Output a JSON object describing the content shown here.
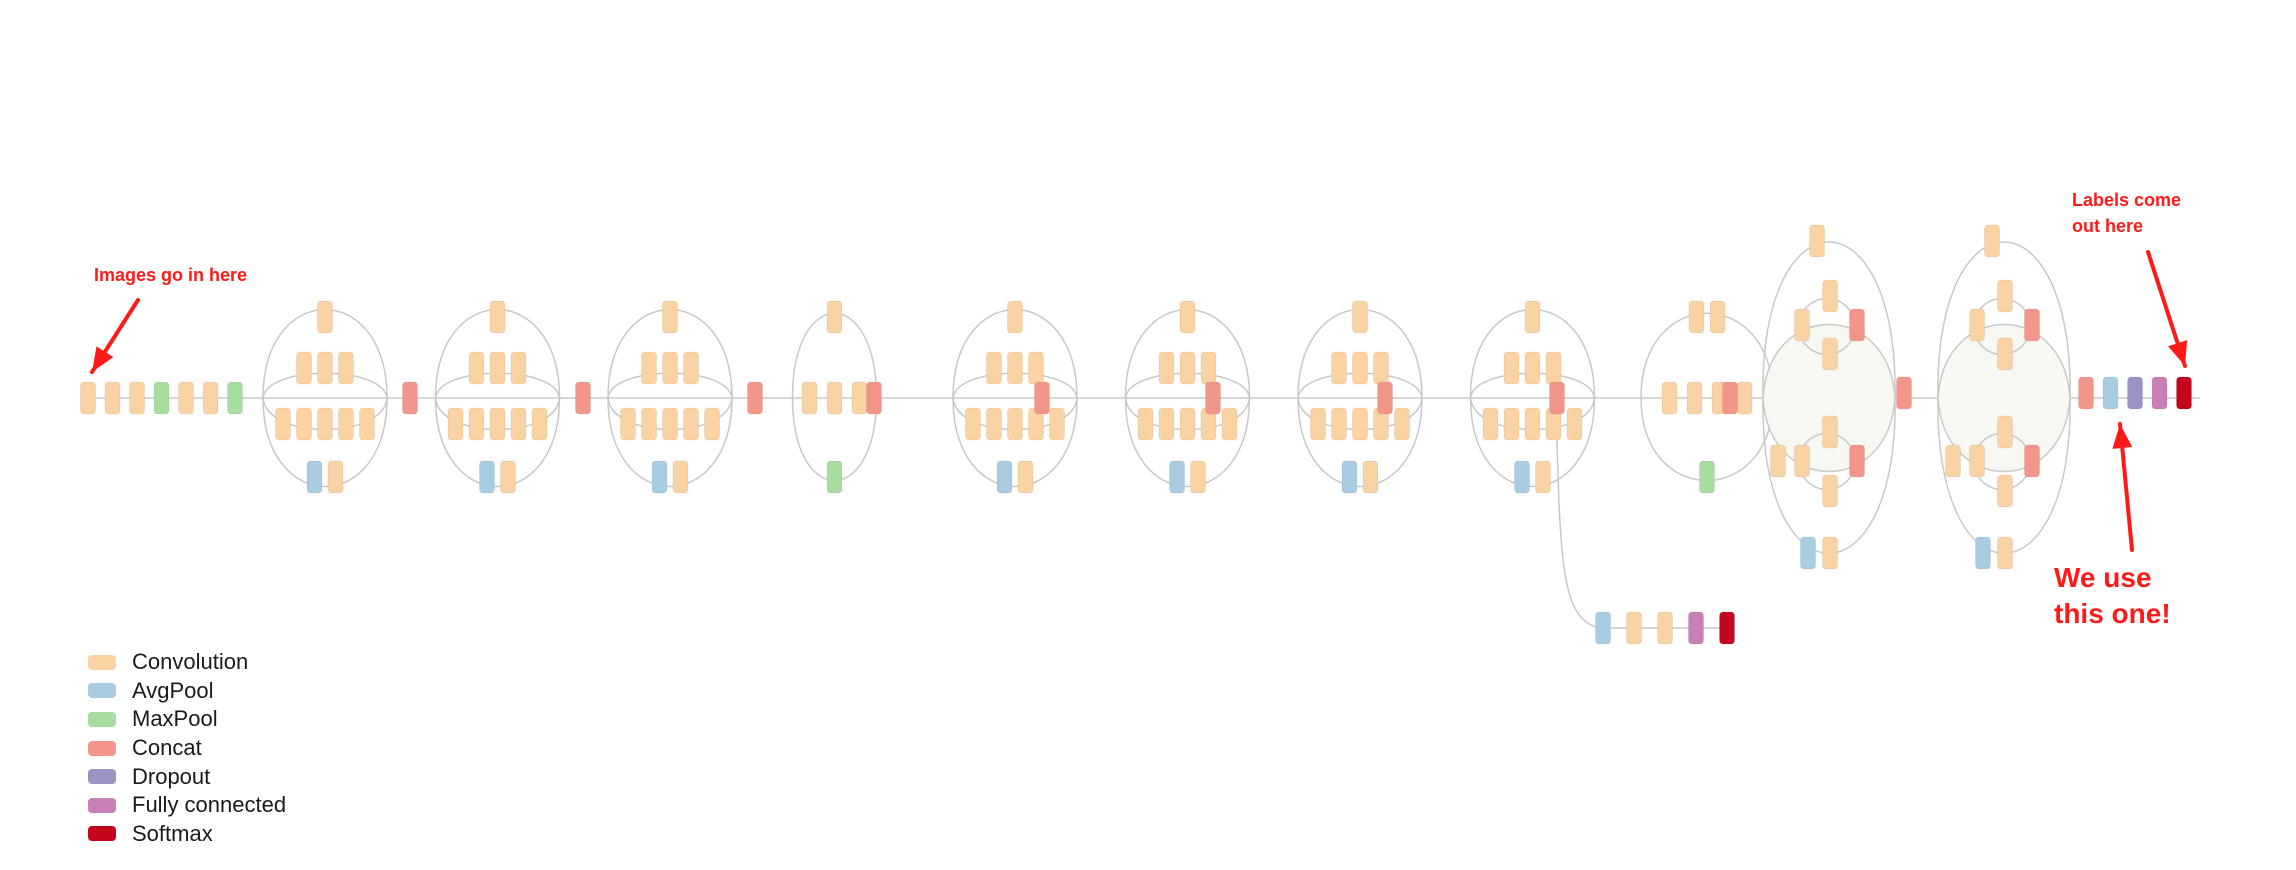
{
  "annotations": {
    "input": "Images go in here",
    "output": "Labels come\nout here",
    "use": "We use\nthis one!"
  },
  "legend": [
    {
      "type": "conv",
      "label": "Convolution",
      "icon": "convolution-swatch"
    },
    {
      "type": "avg",
      "label": "AvgPool",
      "icon": "avgpool-swatch"
    },
    {
      "type": "max",
      "label": "MaxPool",
      "icon": "maxpool-swatch"
    },
    {
      "type": "concat",
      "label": "Concat",
      "icon": "concat-swatch"
    },
    {
      "type": "drop",
      "label": "Dropout",
      "icon": "dropout-swatch"
    },
    {
      "type": "fc",
      "label": "Fully connected",
      "icon": "fully-connected-swatch"
    },
    {
      "type": "soft",
      "label": "Softmax",
      "icon": "softmax-swatch"
    }
  ],
  "colors": {
    "conv": "#f9d3a4",
    "avg": "#a8cde3",
    "max": "#a8dda0",
    "concat": "#f3968a",
    "drop": "#9b93c4",
    "fc": "#c87fb5",
    "soft": "#c4071d",
    "edge": "#c8c8c8",
    "annotation": "#ff1a1a",
    "highlight": "#f7f8f1"
  },
  "network": {
    "stem": [
      "conv",
      "conv",
      "conv",
      "max",
      "conv",
      "conv",
      "max"
    ],
    "blocks": [
      {
        "kind": "A",
        "top": [
          "conv"
        ],
        "mid": [
          "conv",
          "conv",
          "conv"
        ],
        "low": [
          "conv",
          "conv",
          "conv",
          "conv",
          "conv"
        ],
        "bottom": [
          "avg",
          "conv"
        ]
      },
      {
        "kind": "A",
        "top": [
          "conv"
        ],
        "mid": [
          "conv",
          "conv",
          "conv"
        ],
        "low": [
          "conv",
          "conv",
          "conv",
          "conv",
          "conv"
        ],
        "bottom": [
          "avg",
          "conv"
        ]
      },
      {
        "kind": "A",
        "top": [
          "conv"
        ],
        "mid": [
          "conv",
          "conv",
          "conv"
        ],
        "low": [
          "conv",
          "conv",
          "conv",
          "conv",
          "conv"
        ],
        "bottom": [
          "avg",
          "conv"
        ]
      },
      {
        "kind": "R",
        "top": [
          "conv"
        ],
        "mid": [
          "conv",
          "conv",
          "conv"
        ],
        "bottom": [
          "max"
        ]
      },
      {
        "kind": "A",
        "top": [
          "conv"
        ],
        "mid": [
          "conv",
          "conv",
          "conv"
        ],
        "low": [
          "conv",
          "conv",
          "conv",
          "conv",
          "conv"
        ],
        "bottom": [
          "avg",
          "conv"
        ]
      },
      {
        "kind": "A",
        "top": [
          "conv"
        ],
        "mid": [
          "conv",
          "conv",
          "conv"
        ],
        "low": [
          "conv",
          "conv",
          "conv",
          "conv",
          "conv"
        ],
        "bottom": [
          "avg",
          "conv"
        ]
      },
      {
        "kind": "A",
        "top": [
          "conv"
        ],
        "mid": [
          "conv",
          "conv",
          "conv"
        ],
        "low": [
          "conv",
          "conv",
          "conv",
          "conv",
          "conv"
        ],
        "bottom": [
          "avg",
          "conv"
        ]
      },
      {
        "kind": "A",
        "top": [
          "conv"
        ],
        "mid": [
          "conv",
          "conv",
          "conv"
        ],
        "low": [
          "conv",
          "conv",
          "conv",
          "conv",
          "conv"
        ],
        "bottom": [
          "avg",
          "conv"
        ]
      },
      {
        "kind": "R2",
        "top": [
          "conv",
          "conv"
        ],
        "mid": [
          "conv",
          "conv",
          "conv",
          "conv"
        ],
        "bottom": [
          "max"
        ]
      },
      {
        "kind": "E"
      },
      {
        "kind": "E"
      }
    ],
    "aux_head": [
      "avg",
      "conv",
      "conv",
      "fc",
      "soft"
    ],
    "head": [
      "concat",
      "avg",
      "drop",
      "fc",
      "soft"
    ]
  }
}
